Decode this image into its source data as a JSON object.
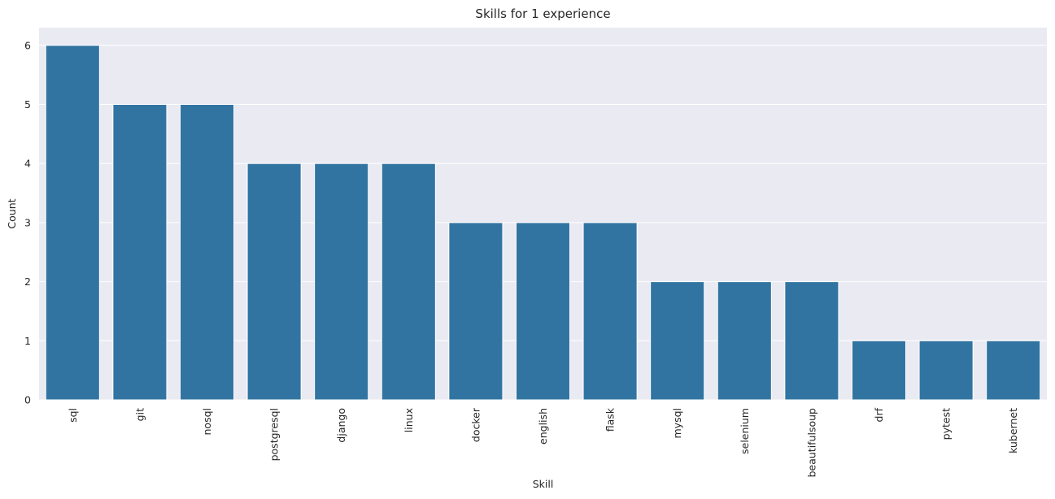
{
  "chart_data": {
    "type": "bar",
    "title": "Skills for 1 experience",
    "xlabel": "Skill",
    "ylabel": "Count",
    "categories": [
      "sql",
      "git",
      "nosql",
      "postgresql",
      "django",
      "linux",
      "docker",
      "english",
      "flask",
      "mysql",
      "selenium",
      "beautifulsoup",
      "drf",
      "pytest",
      "kubernet"
    ],
    "values": [
      6,
      5,
      5,
      4,
      4,
      4,
      3,
      3,
      3,
      2,
      2,
      2,
      1,
      1,
      1
    ],
    "ylim": [
      0,
      6.3
    ],
    "yticks": [
      0,
      1,
      2,
      3,
      4,
      5,
      6
    ],
    "grid": true,
    "colors": {
      "bar": "#3274a1",
      "background": "#eaeaf2",
      "grid": "#ffffff"
    }
  }
}
